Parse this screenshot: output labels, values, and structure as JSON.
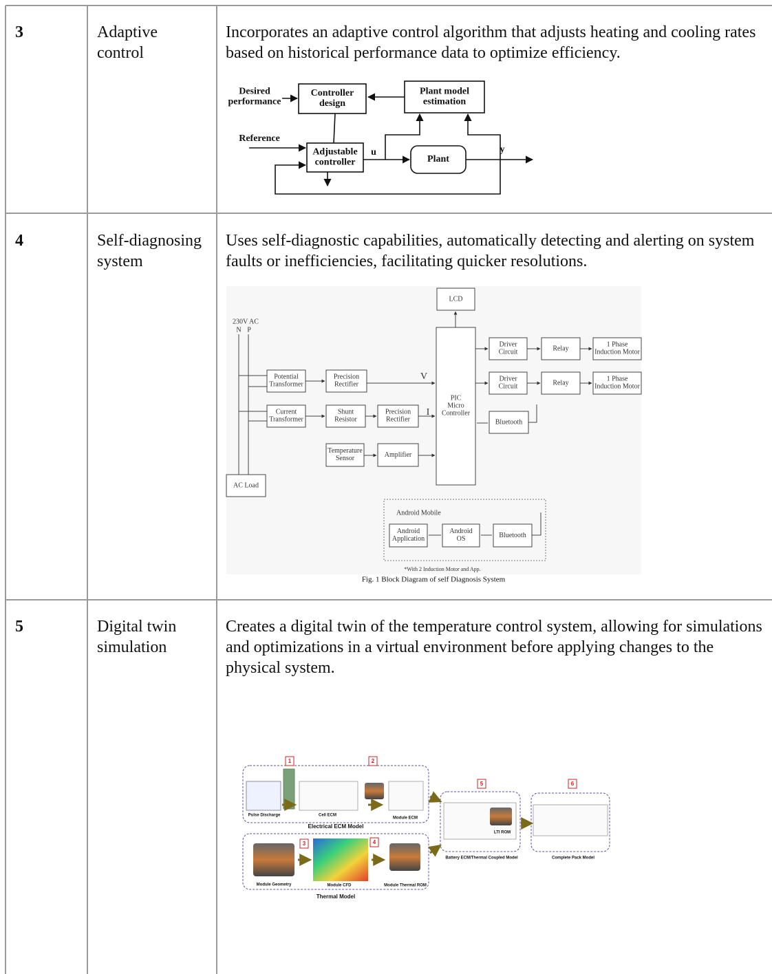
{
  "table": {
    "rows": [
      {
        "number": "3",
        "name": "Adaptive control",
        "description": "Incorporates an adaptive control algorithm that adjusts heating and cooling rates based on historical performance data to optimize efficiency.",
        "figure": {
          "labels": [
            [
              "Desired",
              "performance"
            ],
            [
              "Controller",
              "design"
            ],
            [
              "Plant model",
              "estimation"
            ],
            "Reference",
            [
              "Adjustable",
              "controller"
            ],
            "u",
            "Plant",
            "y"
          ]
        }
      },
      {
        "number": "4",
        "name": "Self-diagnosing system",
        "description": "Uses self-diagnostic capabilities, automatically detecting and alerting on system faults or inefficiencies, facilitating quicker resolutions.",
        "figure": {
          "labels": [
            "LCD",
            "230V AC",
            "N",
            "P",
            [
              "Potential",
              "Transformer"
            ],
            [
              "Precision",
              "Rectifier"
            ],
            "V",
            [
              "Current",
              "Transformer"
            ],
            [
              "Shunt",
              "Resistor"
            ],
            [
              "Precision",
              "Rectifier"
            ],
            "I",
            [
              "Temperature",
              "Sensor"
            ],
            "Amplifier",
            [
              "PIC",
              "Micro",
              "Controller"
            ],
            [
              "Driver",
              "Circuit"
            ],
            "Relay",
            [
              "1 Phase",
              "Induction Motor"
            ],
            [
              "Driver",
              "Circuit"
            ],
            "Relay",
            [
              "1 Phase",
              "Induction Motor"
            ],
            "Bluetooth",
            "AC Load",
            "Android Mobile",
            [
              "Android",
              "Application"
            ],
            [
              "Android",
              "OS"
            ],
            "Bluetooth",
            "*With 2 Induction Motor and App."
          ],
          "caption": "Fig. 1 Block Diagram of self Diagnosis System"
        }
      },
      {
        "number": "5",
        "name": "Digital twin simulation",
        "description": "Creates a digital twin of the temperature control system, allowing for simulations and optimizations in a virtual environment before applying changes to the physical system.",
        "figure": {
          "labels": [
            "1",
            "2",
            "3",
            "4",
            "5",
            "6",
            "Pulse Discharge",
            "Cell ECM",
            "Module ECM",
            "Electrical ECM Model",
            "Module Geometry",
            "Module CFD",
            "Module Thermal ROM",
            "Thermal Model",
            "LTI ROM",
            "Battery ECM/Thermal Coupled Model",
            "Complete Pack Model"
          ]
        }
      }
    ]
  }
}
